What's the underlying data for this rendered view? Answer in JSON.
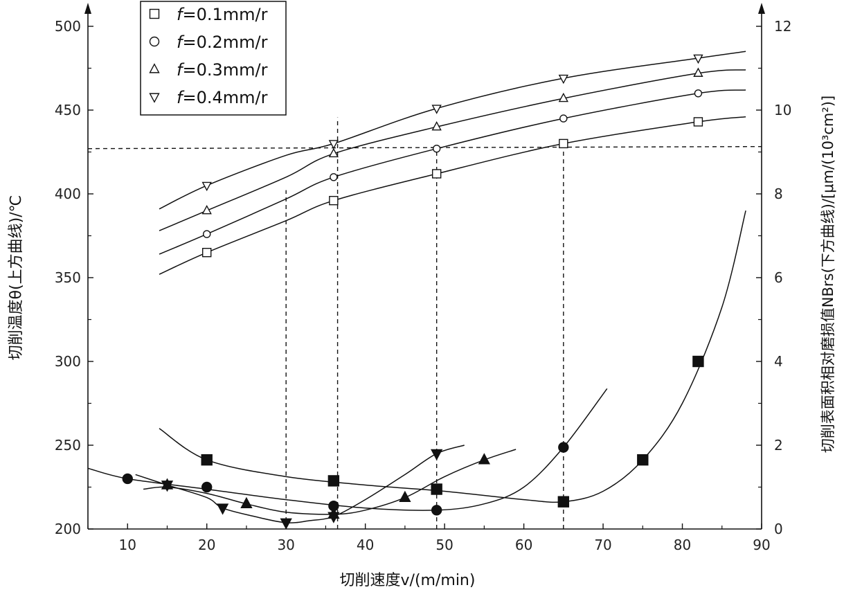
{
  "chart_data": {
    "type": "scatter",
    "xlabel": "切削速度v/(m/min)",
    "ylabel_left": "切削温度θ(上方曲线)/℃",
    "ylabel_right": "切削表面积相对磨损值NBrs(下方曲线)/[μm/(10³cm²)]",
    "xlim": [
      5,
      90
    ],
    "ylim_left": [
      200,
      500
    ],
    "ylim_right": [
      0,
      12
    ],
    "x_ticks": [
      10,
      20,
      30,
      40,
      50,
      60,
      70,
      80,
      90
    ],
    "y_ticks_left": [
      200,
      250,
      300,
      350,
      400,
      450,
      500
    ],
    "y_ticks_right": [
      0,
      2,
      4,
      6,
      8,
      10,
      12
    ],
    "legend": {
      "position": "top-left",
      "entries": [
        {
          "symbol": "square",
          "prefix": "f",
          "text": "=0.1mm/r"
        },
        {
          "symbol": "circle",
          "prefix": "f",
          "text": "=0.2mm/r"
        },
        {
          "symbol": "triangle-up",
          "prefix": "f",
          "text": "=0.3mm/r"
        },
        {
          "symbol": "triangle-down",
          "prefix": "f",
          "text": "=0.4mm/r"
        }
      ]
    },
    "temperature_series": [
      {
        "name": "f=0.1mm/r",
        "marker": "square",
        "x": [
          20,
          36,
          49,
          65,
          82
        ],
        "y": [
          365,
          396,
          412,
          430,
          443
        ],
        "fit": {
          "x": [
            14,
            20,
            30,
            36,
            49,
            65,
            82,
            88
          ],
          "y": [
            352,
            365,
            384,
            396,
            412,
            430,
            443,
            446
          ]
        }
      },
      {
        "name": "f=0.2mm/r",
        "marker": "circle",
        "x": [
          20,
          36,
          49,
          65,
          82
        ],
        "y": [
          376,
          410,
          427,
          445,
          460
        ],
        "fit": {
          "x": [
            14,
            20,
            30,
            36,
            49,
            65,
            82,
            88
          ],
          "y": [
            364,
            376,
            397,
            410,
            427,
            445,
            460,
            462
          ]
        }
      },
      {
        "name": "f=0.3mm/r",
        "marker": "triangle-up",
        "x": [
          20,
          36,
          49,
          65,
          82
        ],
        "y": [
          390,
          424,
          440,
          457,
          472
        ],
        "fit": {
          "x": [
            14,
            20,
            30,
            36,
            49,
            65,
            82,
            88
          ],
          "y": [
            378,
            390,
            410,
            424,
            440,
            457,
            472,
            474
          ]
        }
      },
      {
        "name": "f=0.4mm/r",
        "marker": "triangle-down",
        "x": [
          20,
          36,
          49,
          65,
          82
        ],
        "y": [
          405,
          430,
          451,
          469,
          481
        ],
        "fit": {
          "x": [
            14,
            20,
            30,
            36,
            49,
            65,
            82,
            88
          ],
          "y": [
            391,
            405,
            423,
            430,
            451,
            469,
            481,
            485
          ]
        }
      }
    ],
    "wear_series": [
      {
        "name": "f=0.1mm/r",
        "marker": "square",
        "x": [
          20,
          36,
          49,
          65,
          75,
          82
        ],
        "y": [
          1.65,
          1.15,
          0.95,
          0.65,
          1.65,
          4.0
        ],
        "fit": {
          "x": [
            14,
            20,
            30,
            40,
            50,
            60,
            65,
            70,
            75,
            80,
            85,
            88
          ],
          "y": [
            2.4,
            1.65,
            1.25,
            1.05,
            0.9,
            0.7,
            0.65,
            0.9,
            1.65,
            3.0,
            5.3,
            7.6
          ]
        }
      },
      {
        "name": "f=0.2mm/r",
        "marker": "circle",
        "x": [
          10,
          20,
          36,
          49,
          65
        ],
        "y": [
          1.2,
          1.0,
          0.55,
          0.45,
          1.95
        ],
        "fit": {
          "x": [
            5,
            10,
            20,
            30,
            40,
            49,
            55,
            60,
            65,
            70.5
          ],
          "y": [
            1.45,
            1.2,
            0.95,
            0.7,
            0.5,
            0.45,
            0.6,
            1.0,
            1.95,
            3.35
          ]
        }
      },
      {
        "name": "f=0.3mm/r",
        "marker": "triangle-up",
        "x": [
          15,
          25,
          36,
          45,
          55
        ],
        "y": [
          1.05,
          0.6,
          0.35,
          0.75,
          1.65
        ],
        "fit": {
          "x": [
            12,
            15,
            20,
            25,
            30,
            36,
            40,
            45,
            50,
            55,
            59
          ],
          "y": [
            0.95,
            1.0,
            0.85,
            0.6,
            0.4,
            0.35,
            0.45,
            0.75,
            1.25,
            1.65,
            1.9
          ]
        }
      },
      {
        "name": "f=0.4mm/r",
        "marker": "triangle-down",
        "x": [
          15,
          22,
          30,
          36,
          49
        ],
        "y": [
          1.05,
          0.5,
          0.15,
          0.3,
          1.8
        ],
        "fit": {
          "x": [
            11,
            15,
            20,
            22,
            26,
            30,
            33,
            36,
            40,
            45,
            49,
            52.5
          ],
          "y": [
            1.3,
            1.05,
            0.75,
            0.5,
            0.3,
            0.15,
            0.2,
            0.3,
            0.7,
            1.3,
            1.8,
            2.0
          ]
        }
      }
    ],
    "reference_lines": {
      "vertical": [
        30,
        36.5,
        49,
        65
      ],
      "horizontal_temperature": 427
    }
  }
}
